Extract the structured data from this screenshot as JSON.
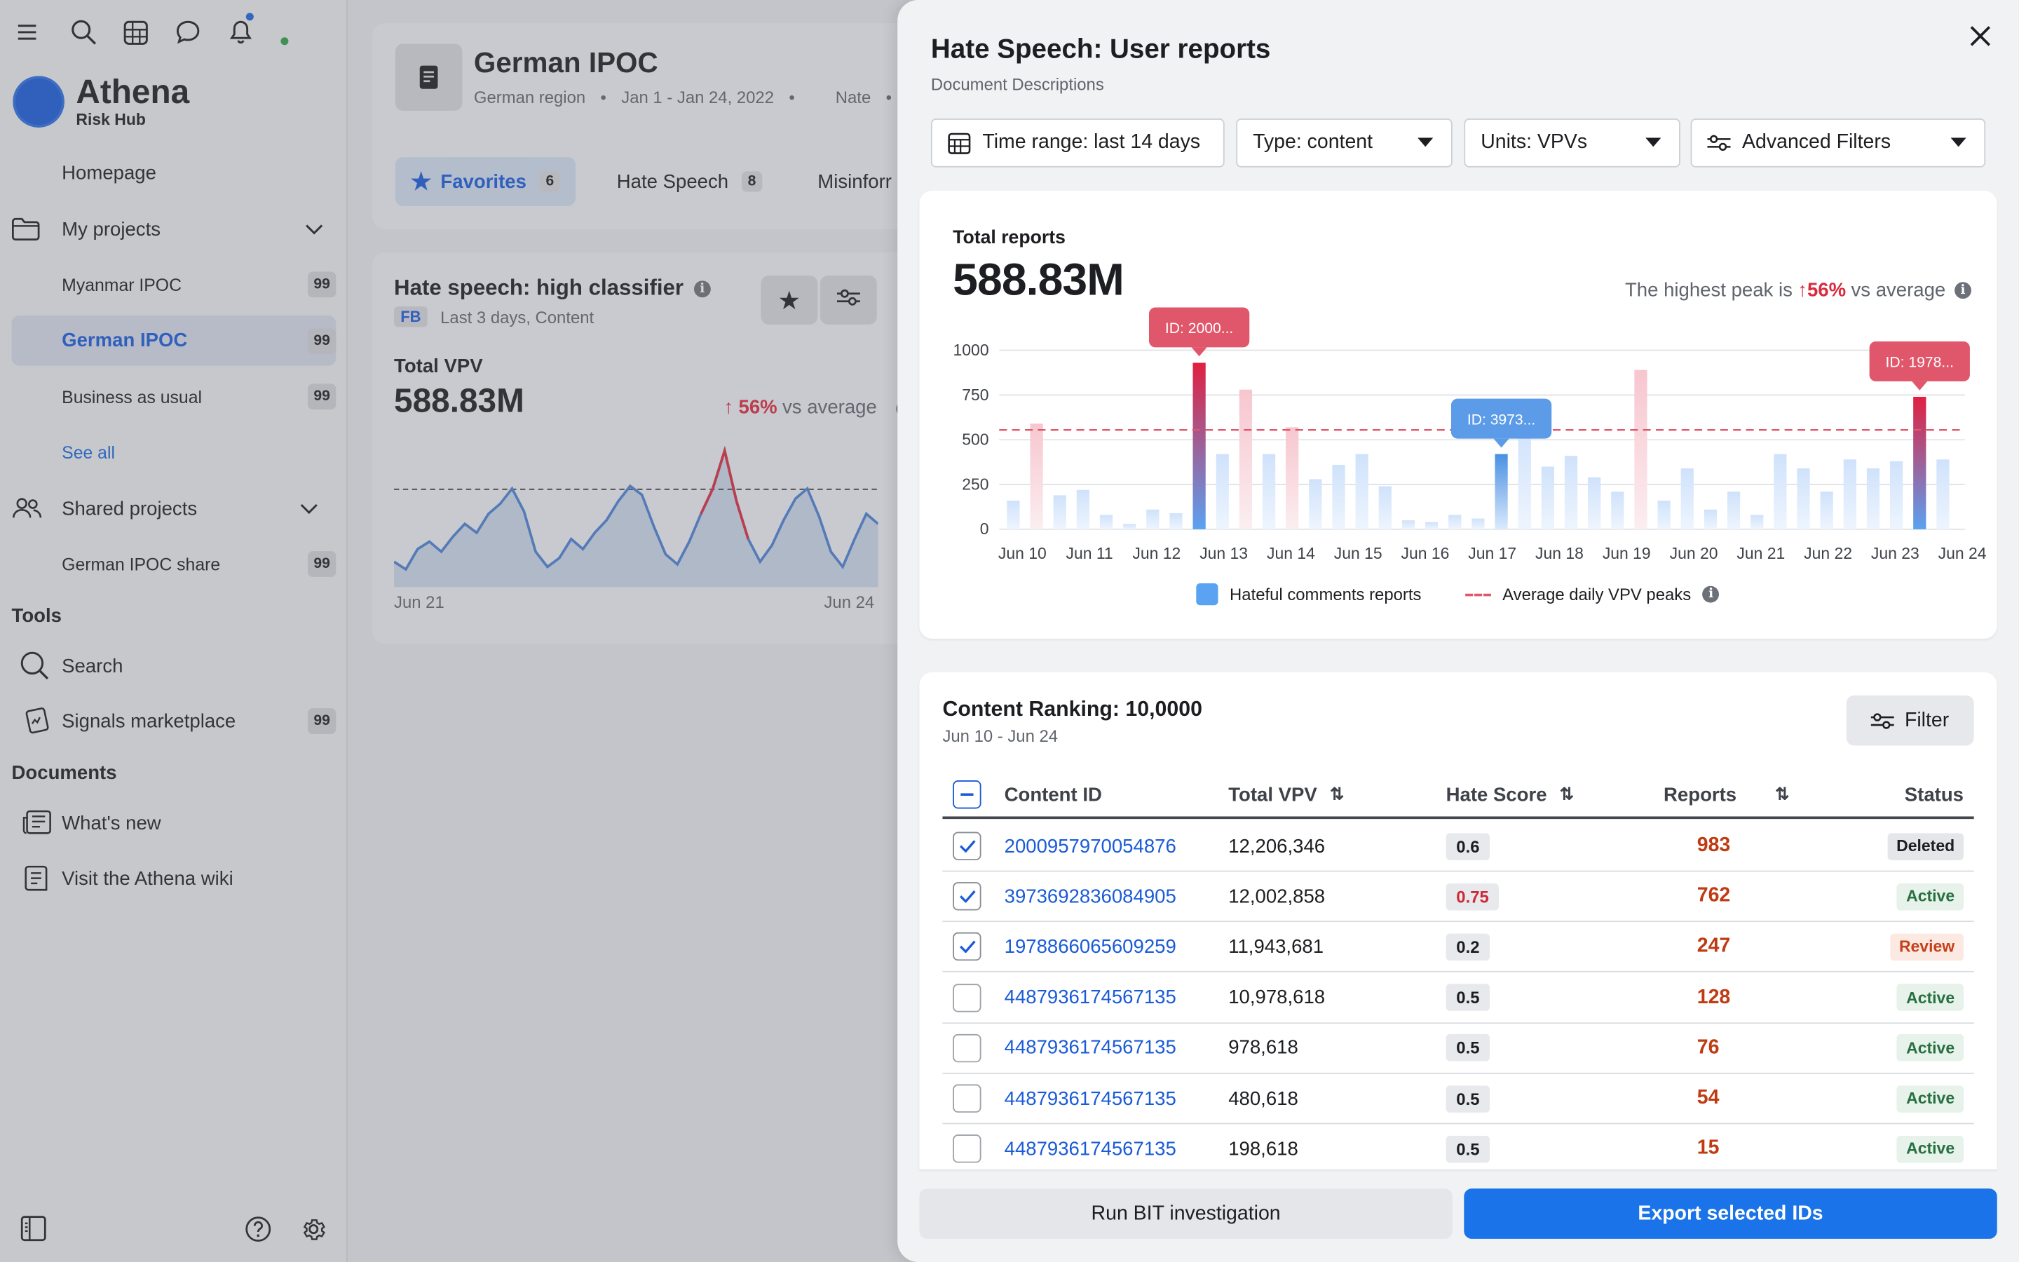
{
  "sidebar": {
    "brand": {
      "name": "Athena",
      "tagline": "Risk Hub"
    },
    "homepage": "Homepage",
    "my_projects": "My projects",
    "projects": [
      {
        "label": "Myanmar IPOC",
        "count": "99"
      },
      {
        "label": "German IPOC",
        "count": "99"
      },
      {
        "label": "Business as usual",
        "count": "99"
      }
    ],
    "see_all": "See all",
    "shared_projects": "Shared projects",
    "shared": [
      {
        "label": "German IPOC share",
        "count": "99"
      }
    ],
    "tools_heading": "Tools",
    "search": "Search",
    "signals": {
      "label": "Signals marketplace",
      "count": "99"
    },
    "documents_heading": "Documents",
    "whats_new": "What's new",
    "wiki": "Visit the Athena wiki"
  },
  "middle": {
    "title": "German IPOC",
    "meta": [
      "German region",
      "Jan 1 - Jan 24, 2022",
      "Nate"
    ],
    "tabs": [
      {
        "label": "Favorites",
        "count": "6"
      },
      {
        "label": "Hate Speech",
        "count": "8"
      },
      {
        "label": "Misinforr",
        "count": ""
      }
    ],
    "widget": {
      "title": "Hate speech: high classifier",
      "source": "FB",
      "meta": "Last 3 days, Content",
      "metric_label": "Total VPV",
      "metric_value": "588.83M",
      "delta": "56%",
      "delta_text": "vs average",
      "x_start": "Jun 21",
      "x_end": "Jun 24",
      "line": [
        0.12,
        0.06,
        0.22,
        0.28,
        0.2,
        0.32,
        0.42,
        0.35,
        0.5,
        0.58,
        0.7,
        0.52,
        0.2,
        0.08,
        0.15,
        0.3,
        0.22,
        0.35,
        0.45,
        0.6,
        0.72,
        0.65,
        0.4,
        0.18,
        0.1,
        0.28,
        0.5,
        0.7,
        1.0,
        0.6,
        0.3,
        0.12,
        0.25,
        0.45,
        0.62,
        0.7,
        0.48,
        0.2,
        0.08,
        0.3,
        0.5,
        0.42
      ],
      "peak_index": 28
    }
  },
  "panel": {
    "title": "Hate Speech: User reports",
    "subtitle": "Document Descriptions",
    "filters": {
      "time": "Time range: last 14 days",
      "type": "Type: content",
      "units": "Units: VPVs",
      "advanced": "Advanced Filters"
    },
    "total": {
      "label": "Total reports",
      "value": "588.83M",
      "peak_prefix": "The highest peak is",
      "peak_pct": "56%",
      "peak_suffix": "vs average"
    },
    "legend": {
      "bars": "Hateful comments reports",
      "line": "Average daily VPV peaks"
    },
    "tooltips": [
      "ID: 2000...",
      "ID: 3973...",
      "ID: 1978..."
    ]
  },
  "chart_data": {
    "type": "bar",
    "y_ticks": [
      "0",
      "250",
      "500",
      "750",
      "1000"
    ],
    "ylim": [
      0,
      1000
    ],
    "x_ticks": [
      "Jun 10",
      "Jun 11",
      "Jun 12",
      "Jun 13",
      "Jun 14",
      "Jun 15",
      "Jun 16",
      "Jun 17",
      "Jun 18",
      "Jun 19",
      "Jun 20",
      "Jun 21",
      "Jun 22",
      "Jun 23",
      "Jun 24"
    ],
    "average_line": 555,
    "values": [
      160,
      590,
      190,
      220,
      80,
      30,
      110,
      90,
      930,
      420,
      780,
      420,
      570,
      280,
      360,
      420,
      240,
      50,
      40,
      80,
      60,
      420,
      590,
      350,
      410,
      290,
      210,
      890,
      160,
      340,
      110,
      210,
      80,
      420,
      340,
      210,
      390,
      340,
      380,
      740,
      390
    ],
    "highlighted": [
      {
        "index": 8,
        "color": "#e02040",
        "label": "ID: 2000..."
      },
      {
        "index": 21,
        "color": "#4a90e2",
        "label": "ID: 3973..."
      },
      {
        "index": 39,
        "color": "#e02040",
        "label": "ID: 1978..."
      }
    ],
    "pink_bars": [
      1,
      10,
      12,
      27
    ]
  },
  "table": {
    "title": "Content Ranking: 10,0000",
    "range": "Jun 10 - Jun 24",
    "filter_label": "Filter",
    "headers": {
      "id": "Content ID",
      "vpv": "Total VPV",
      "score": "Hate Score",
      "reports": "Reports",
      "status": "Status"
    },
    "rows": [
      {
        "checked": true,
        "id": "2000957970054876",
        "vpv": "12,206,346",
        "score": "0.6",
        "score_red": false,
        "reports": "983",
        "status": "Deleted"
      },
      {
        "checked": true,
        "id": "3973692836084905",
        "vpv": "12,002,858",
        "score": "0.75",
        "score_red": true,
        "reports": "762",
        "status": "Active"
      },
      {
        "checked": true,
        "id": "1978866065609259",
        "vpv": "11,943,681",
        "score": "0.2",
        "score_red": false,
        "reports": "247",
        "status": "Review"
      },
      {
        "checked": false,
        "id": "4487936174567135",
        "vpv": "10,978,618",
        "score": "0.5",
        "score_red": false,
        "reports": "128",
        "status": "Active"
      },
      {
        "checked": false,
        "id": "4487936174567135",
        "vpv": "978,618",
        "score": "0.5",
        "score_red": false,
        "reports": "76",
        "status": "Active"
      },
      {
        "checked": false,
        "id": "4487936174567135",
        "vpv": "480,618",
        "score": "0.5",
        "score_red": false,
        "reports": "54",
        "status": "Active"
      },
      {
        "checked": false,
        "id": "4487936174567135",
        "vpv": "198,618",
        "score": "0.5",
        "score_red": false,
        "reports": "15",
        "status": "Active"
      }
    ]
  },
  "actions": {
    "run": "Run BIT investigation",
    "export": "Export selected IDs"
  },
  "colors": {
    "accent": "#1a73e8",
    "danger": "#d92a3f",
    "bar": "#5aa2f2"
  }
}
